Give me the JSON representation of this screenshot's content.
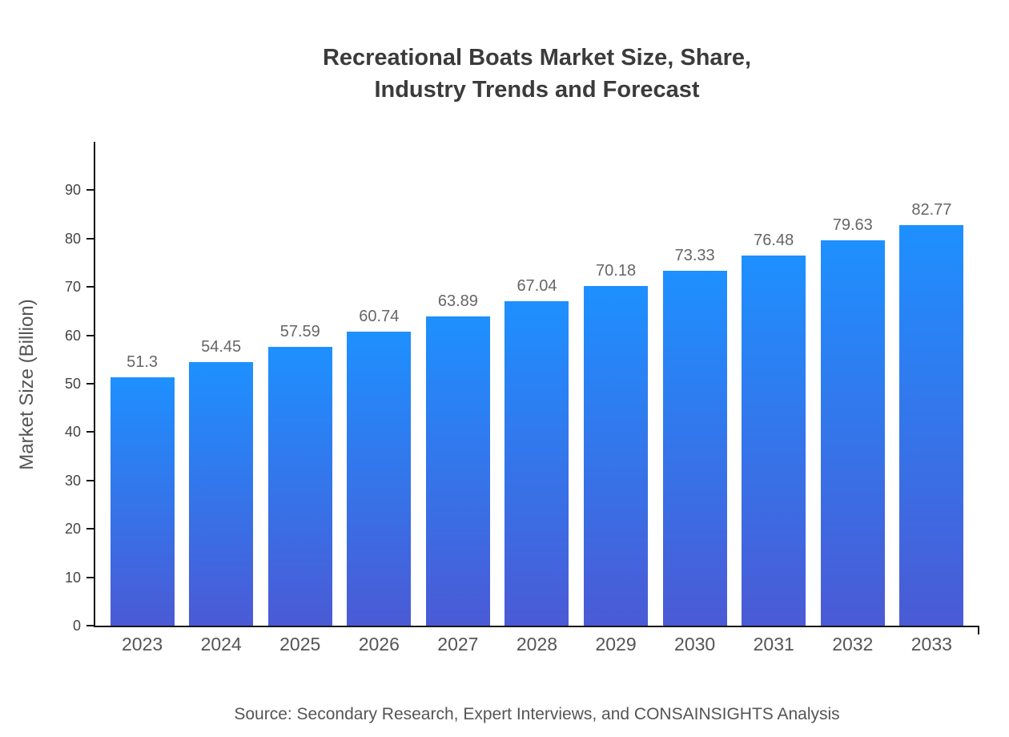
{
  "chart_data": {
    "type": "bar",
    "title": "Recreational Boats Market Size, Share, Industry Trends and Forecast",
    "title_lines": [
      "Recreational Boats Market Size, Share,",
      "Industry Trends and Forecast"
    ],
    "categories": [
      "2023",
      "2024",
      "2025",
      "2026",
      "2027",
      "2028",
      "2029",
      "2030",
      "2031",
      "2032",
      "2033"
    ],
    "values": [
      51.3,
      54.45,
      57.59,
      60.74,
      63.89,
      67.04,
      70.18,
      73.33,
      76.48,
      79.63,
      82.77
    ],
    "value_labels": [
      "51.3",
      "54.45",
      "57.59",
      "60.74",
      "63.89",
      "67.04",
      "70.18",
      "73.33",
      "76.48",
      "79.63",
      "82.77"
    ],
    "xlabel": "",
    "ylabel": "Market Size (Billion)",
    "ylim": [
      0,
      100
    ],
    "yticks": [
      0,
      10,
      20,
      30,
      40,
      50,
      60,
      70,
      80,
      90
    ],
    "grid": false,
    "legend_position": "none",
    "bar_gradient_top": "#1E90FF",
    "bar_gradient_bottom": "#4B5AD5",
    "axis_color": "#161616",
    "source": "Source: Secondary Research, Expert Interviews, and CONSAINSIGHTS Analysis"
  }
}
